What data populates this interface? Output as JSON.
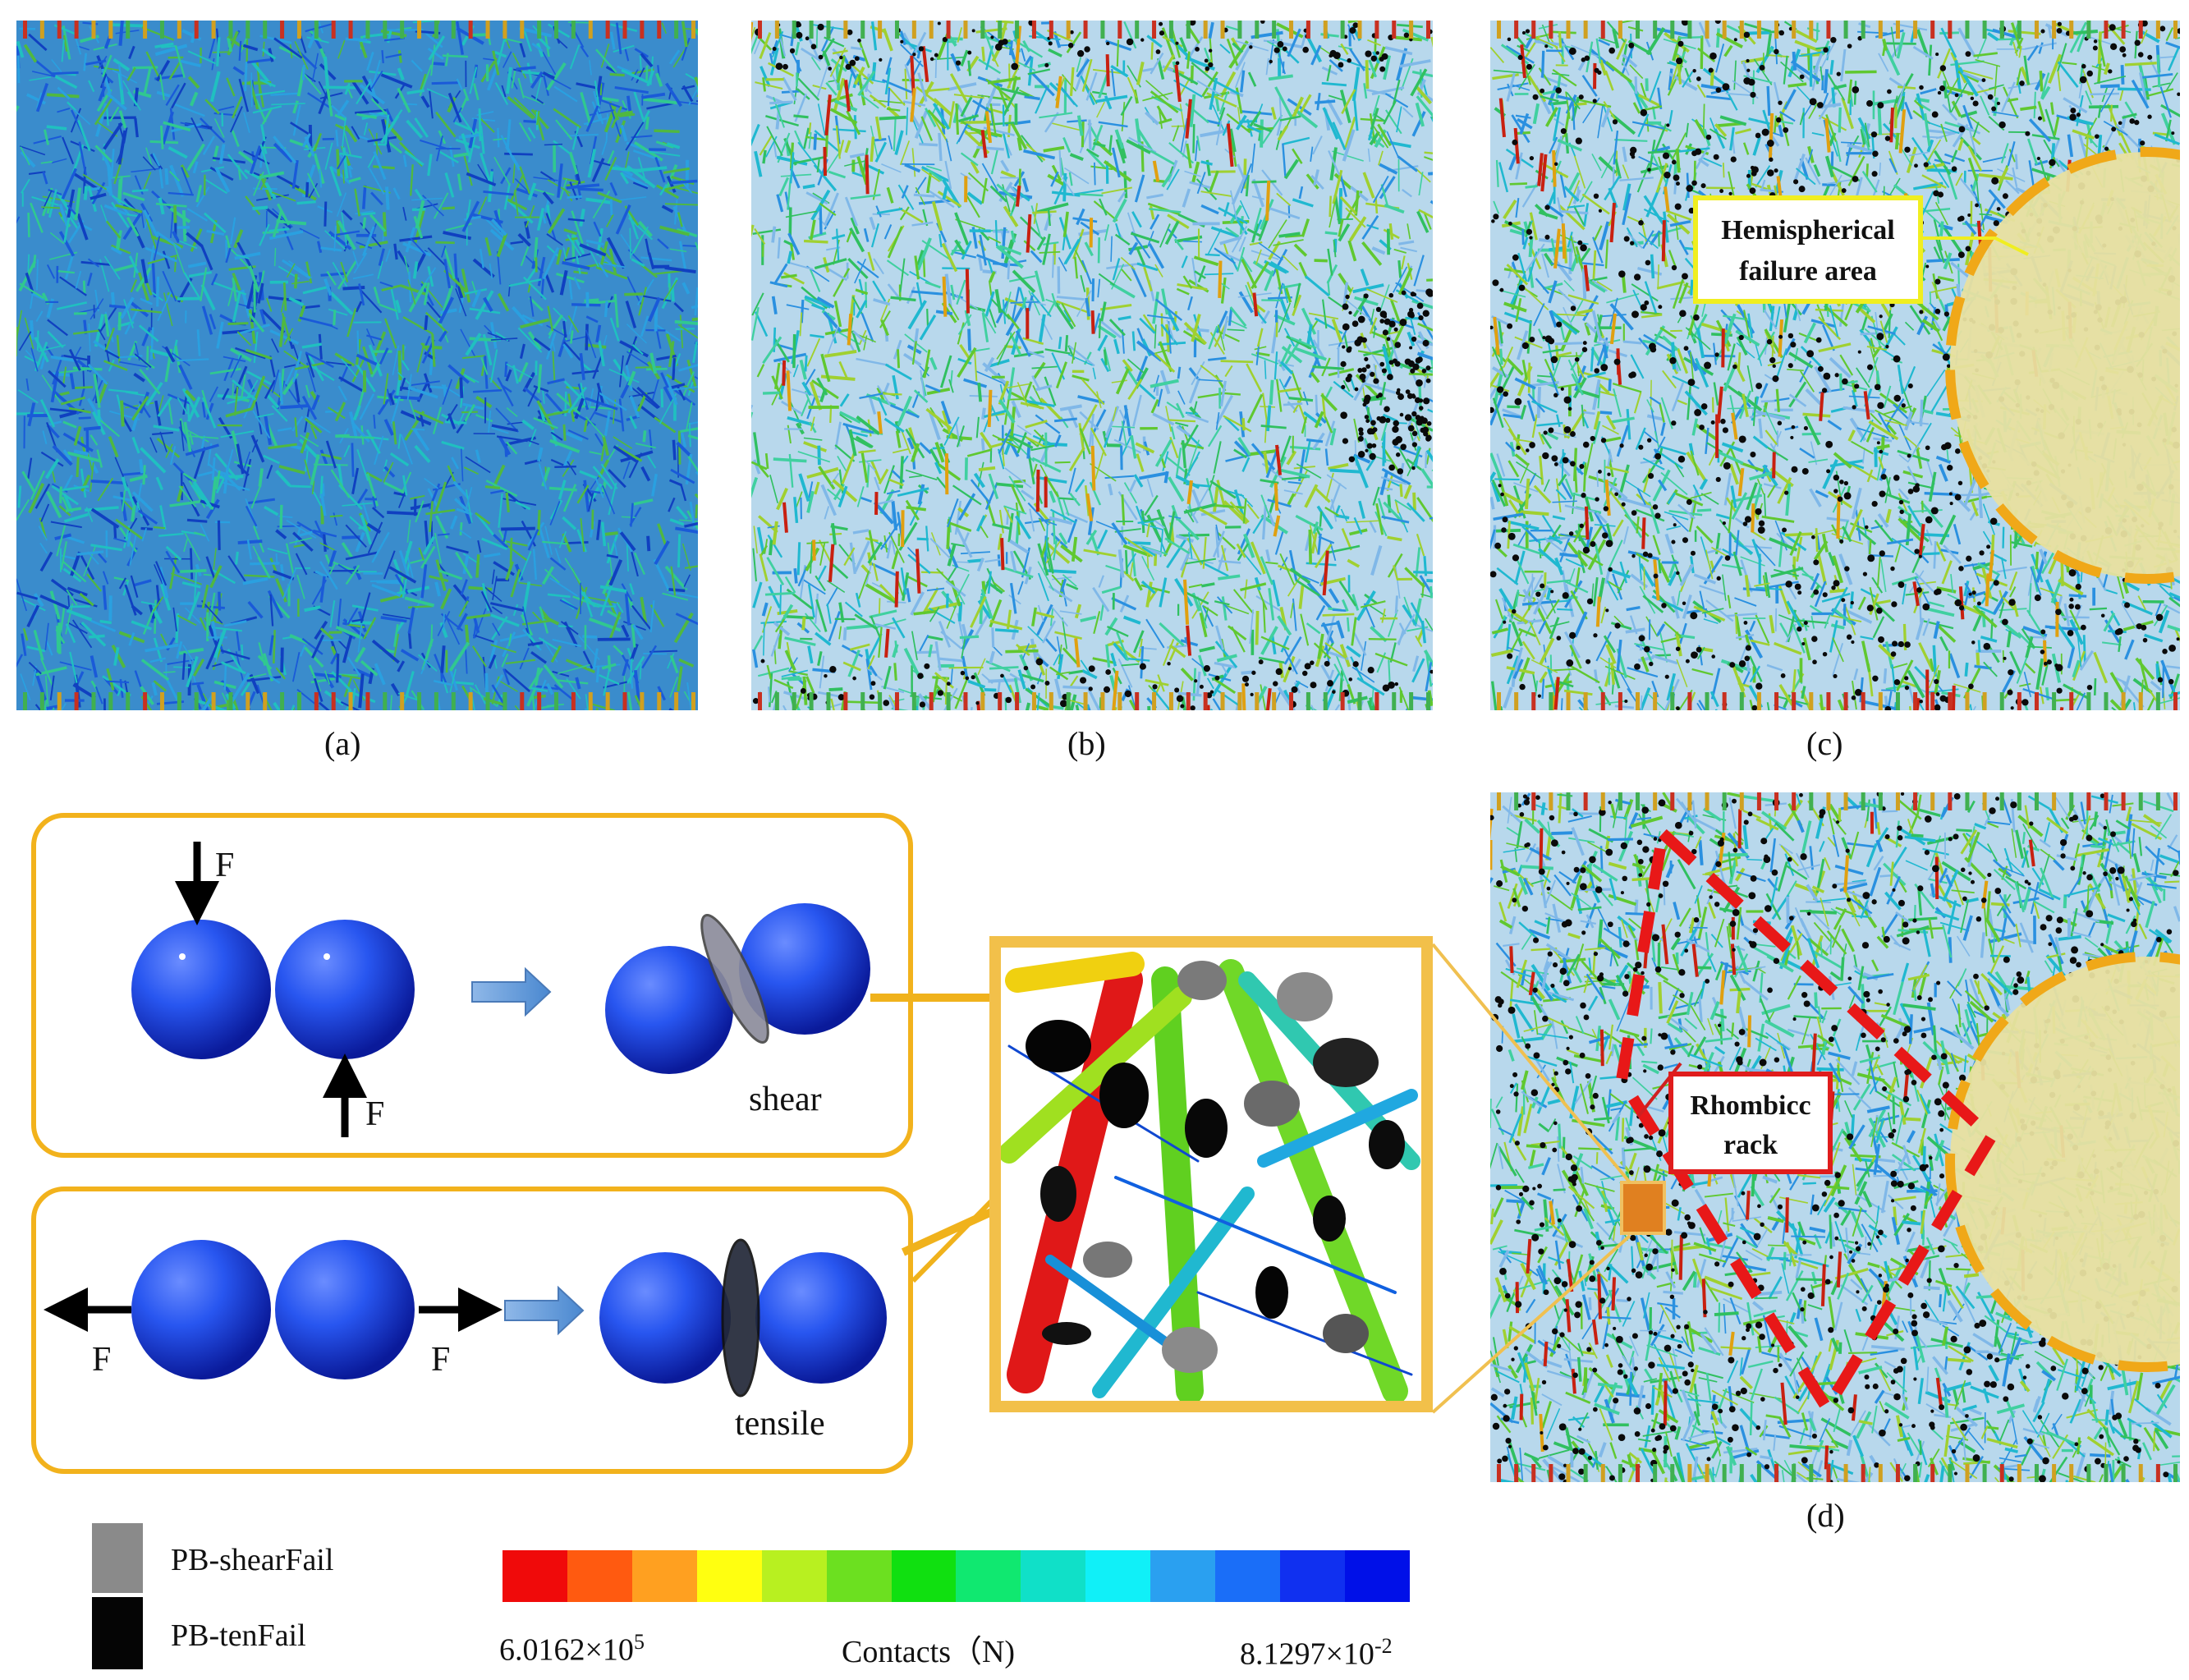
{
  "panels": {
    "a": {
      "caption": "(a)"
    },
    "b": {
      "caption": "(b)"
    },
    "c": {
      "caption": "(c)",
      "callout": {
        "line1": "Hemispherical",
        "line2": "failure area"
      }
    },
    "d": {
      "caption": "(d)",
      "callout": {
        "line1": "Rhombicc",
        "line2": "rack"
      }
    }
  },
  "mechanisms": {
    "shear": {
      "force_label": "F",
      "mode_label": "shear"
    },
    "tensile": {
      "force_label": "F",
      "mode_label": "tensile"
    }
  },
  "legend": {
    "shear_fail_label": "PB-shearFail",
    "ten_fail_label": "PB-tenFail",
    "colorbar_min": "6.0162×10",
    "colorbar_min_exp": "5",
    "colorbar_title": "Contacts（N)",
    "colorbar_max": "8.1297×10",
    "colorbar_max_exp": "-2",
    "colorbar_colors": [
      "#f00a0a",
      "#ff5a10",
      "#ffa020",
      "#ffff10",
      "#b8f020",
      "#6ce020",
      "#10e010",
      "#10e870",
      "#10e0c8",
      "#10f0f8",
      "#2aa0f0",
      "#1a6ef8",
      "#1030f0",
      "#0010e8"
    ]
  }
}
